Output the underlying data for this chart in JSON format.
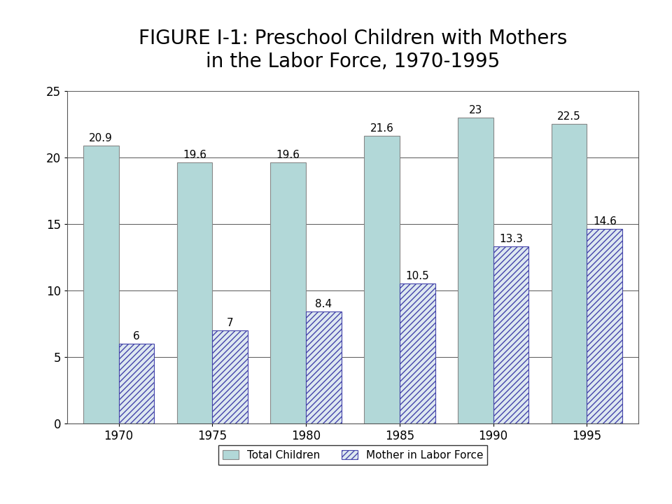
{
  "title": "FIGURE I-1: Preschool Children with Mothers\nin the Labor Force, 1970-1995",
  "years": [
    "1970",
    "1975",
    "1980",
    "1985",
    "1990",
    "1995"
  ],
  "total_children": [
    20.9,
    19.6,
    19.6,
    21.6,
    23.0,
    22.5
  ],
  "mother_in_labor_force": [
    6.0,
    7.0,
    8.4,
    10.5,
    13.3,
    14.6
  ],
  "total_labels": [
    "20.9",
    "19.6",
    "19.6",
    "21.6",
    "23",
    "22.5"
  ],
  "mother_labels": [
    "6",
    "7",
    "8.4",
    "10.5",
    "13.3",
    "14.6"
  ],
  "bar_color_total": "#b2d8d8",
  "bar_color_mother_face": "#dde8f0",
  "bar_color_mother_hatch": "#4444aa",
  "ylim": [
    0,
    25
  ],
  "yticks": [
    0,
    5,
    10,
    15,
    20,
    25
  ],
  "legend_labels": [
    "Total Children",
    "Mother in Labor Force"
  ],
  "title_fontsize": 20,
  "tick_fontsize": 12,
  "value_fontsize": 11,
  "background_color": "#ffffff"
}
